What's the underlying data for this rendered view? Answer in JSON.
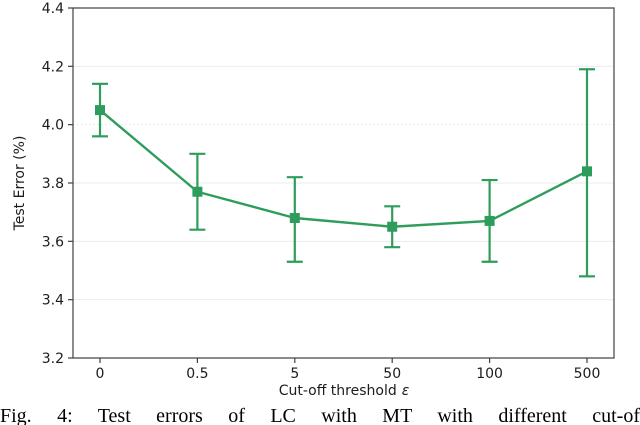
{
  "figure": {
    "caption": "Fig. 4: Test errors of LC with MT with different cut-of"
  },
  "chart_data": {
    "type": "line",
    "title": "",
    "xlabel": "Cut-off threshold ε",
    "xlabel_prefix": "Cut-off threshold",
    "xlabel_symbol": "ε",
    "ylabel": "Test Error (%)",
    "categories": [
      "0",
      "0.5",
      "5",
      "50",
      "100",
      "500"
    ],
    "series": [
      {
        "name": "LC with MT",
        "values": [
          4.05,
          3.77,
          3.68,
          3.65,
          3.67,
          3.84
        ],
        "err_plus": [
          0.09,
          0.13,
          0.14,
          0.07,
          0.14,
          0.35
        ],
        "err_minus": [
          0.09,
          0.13,
          0.15,
          0.07,
          0.14,
          0.36
        ],
        "color": "#2e9d5b",
        "marker": "square"
      }
    ],
    "ylim": [
      3.2,
      4.4
    ],
    "yticks": [
      3.2,
      3.4,
      3.6,
      3.8,
      4.0,
      4.2,
      4.4
    ],
    "grid": true,
    "legend": "none",
    "error_bars": true
  },
  "colors": {
    "series_green": "#2e9d5b",
    "grid": "#ebebeb",
    "grid_dotted": "#e6e6e6",
    "spine": "#3f3f3f",
    "text": "#1c1c1c"
  }
}
